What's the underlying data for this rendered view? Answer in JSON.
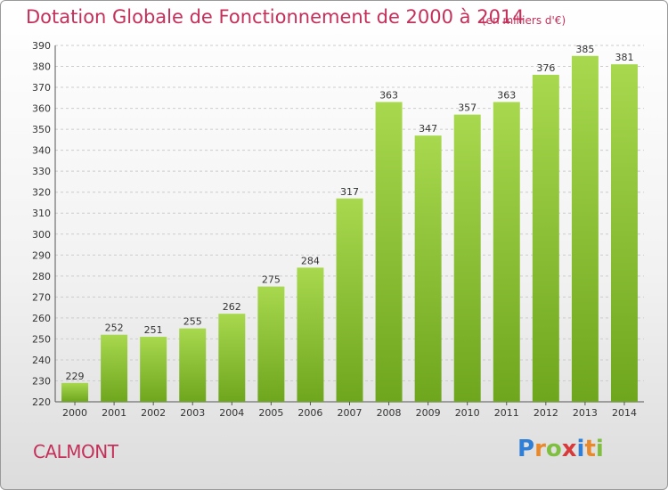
{
  "title": "Dotation Globale de Fonctionnement de 2000 à 2014",
  "subtitle": "(en milliers d'€)",
  "commune": "CALMONT",
  "logo": {
    "text": "Proxiti",
    "letters": [
      "P",
      "r",
      "o",
      "x",
      "i",
      "t",
      "i"
    ],
    "colors": [
      "#2f7fd6",
      "#e8892b",
      "#7fbf3f",
      "#d63a3a",
      "#2f7fd6",
      "#e8892b",
      "#7fbf3f"
    ]
  },
  "colors": {
    "bar_light": "#a8d84e",
    "bar_dark": "#6ea61e",
    "grid": "#cccccc",
    "text_accent": "#c4305a"
  },
  "chart_data": {
    "type": "bar",
    "title": "Dotation Globale de Fonctionnement de 2000 à 2014",
    "subtitle": "(en milliers d'€)",
    "xlabel": "",
    "ylabel": "",
    "categories": [
      "2000",
      "2001",
      "2002",
      "2003",
      "2004",
      "2005",
      "2006",
      "2007",
      "2008",
      "2009",
      "2010",
      "2011",
      "2012",
      "2013",
      "2014"
    ],
    "values": [
      229,
      252,
      251,
      255,
      262,
      275,
      284,
      317,
      363,
      347,
      357,
      363,
      376,
      385,
      381
    ],
    "ylim": [
      220,
      390
    ],
    "yticks": [
      220,
      230,
      240,
      250,
      260,
      270,
      280,
      290,
      300,
      310,
      320,
      330,
      340,
      350,
      360,
      370,
      380,
      390
    ],
    "grid": true,
    "legend": "none"
  }
}
